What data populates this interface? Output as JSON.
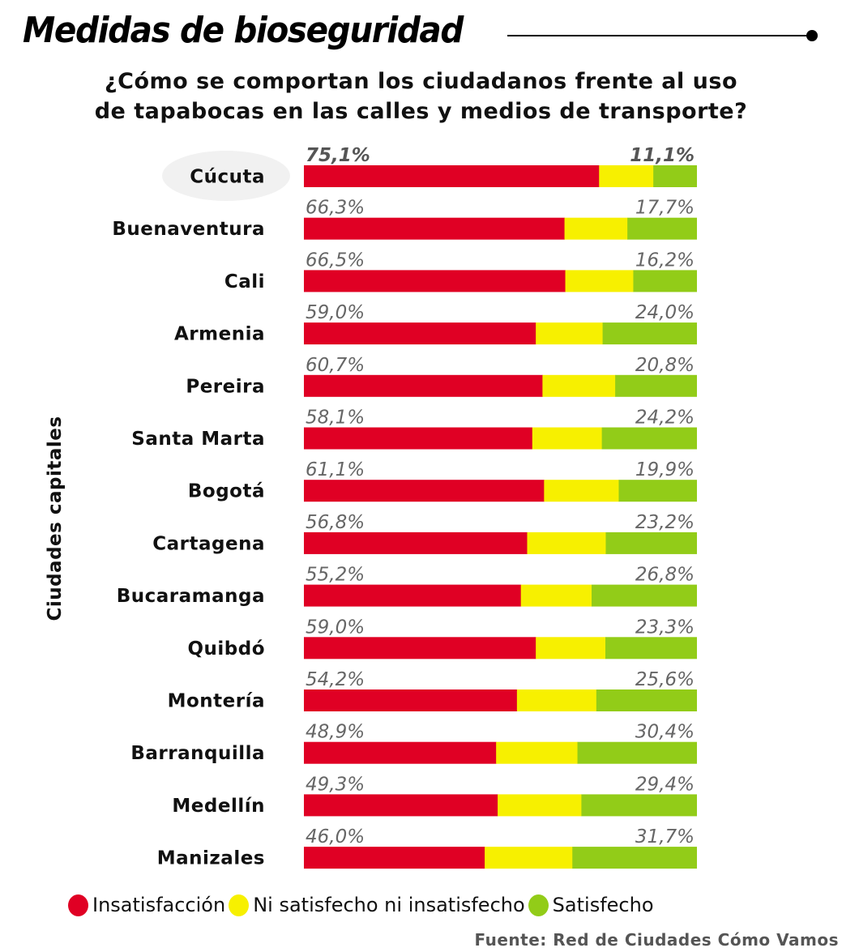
{
  "header": {
    "title": "Medidas de bioseguridad",
    "subtitle_line1": "¿Cómo se comportan los ciudadanos frente al uso",
    "subtitle_line2": "de tapabocas en las calles y medios de transporte?"
  },
  "source": "Fuente: Red de Ciudades Cómo Vamos",
  "colors": {
    "insatisfaccion": "#e00024",
    "neutral": "#f7f000",
    "satisfecho": "#92cc18"
  },
  "chart_data": {
    "type": "bar",
    "orientation": "horizontal",
    "stacked": "100%",
    "title": "Medidas de bioseguridad",
    "ylabel": "Ciudades capitales",
    "highlight": "Cúcuta",
    "categories": [
      "Cúcuta",
      "Buenaventura",
      "Cali",
      "Armenia",
      "Pereira",
      "Santa Marta",
      "Bogotá",
      "Cartagena",
      "Bucaramanga",
      "Quibdó",
      "Montería",
      "Barranquilla",
      "Medellín",
      "Manizales"
    ],
    "series": [
      {
        "name": "Insatisfacción",
        "values": [
          75.1,
          66.3,
          66.5,
          59.0,
          60.7,
          58.1,
          61.1,
          56.8,
          55.2,
          59.0,
          54.2,
          48.9,
          49.3,
          46.0
        ]
      },
      {
        "name": "Ni satisfecho ni insatisfecho",
        "values": [
          13.8,
          16.0,
          17.3,
          17.0,
          18.5,
          17.7,
          19.0,
          20.0,
          18.0,
          17.7,
          20.2,
          20.7,
          21.3,
          22.3
        ]
      },
      {
        "name": "Satisfecho",
        "values": [
          11.1,
          17.7,
          16.2,
          24.0,
          20.8,
          24.2,
          19.9,
          23.2,
          26.8,
          23.3,
          25.6,
          30.4,
          29.4,
          31.7
        ]
      }
    ],
    "labels_left": [
      "75,1%",
      "66,3%",
      "66,5%",
      "59,0%",
      "60,7%",
      "58,1%",
      "61,1%",
      "56,8%",
      "55,2%",
      "59,0%",
      "54,2%",
      "48,9%",
      "49,3%",
      "46,0%"
    ],
    "labels_right": [
      "11,1%",
      "17,7%",
      "16,2%",
      "24,0%",
      "20,8%",
      "24,2%",
      "19,9%",
      "23,2%",
      "26,8%",
      "23,3%",
      "25,6%",
      "30,4%",
      "29,4%",
      "31,7%"
    ],
    "xlim": [
      0,
      100
    ],
    "legend": "bottom"
  }
}
